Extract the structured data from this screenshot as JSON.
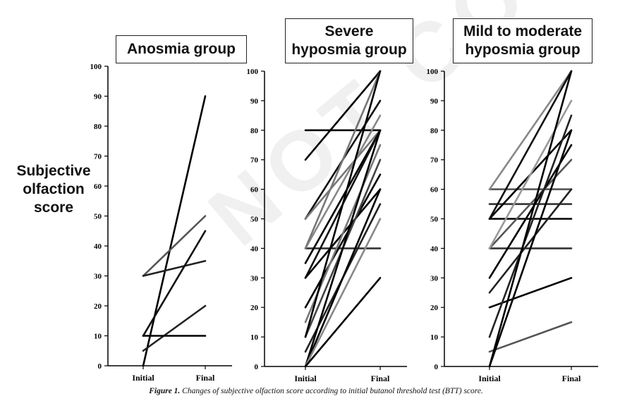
{
  "y_axis_title": [
    "Subjective",
    "olfaction",
    "score"
  ],
  "caption": {
    "label": "Figure 1.",
    "text": "Changes of subjective olfaction score according to initial butanol threshold test (BTT) score."
  },
  "watermark": "NOT COPY",
  "chart_data": [
    {
      "type": "line",
      "title": [
        "Anosmia group"
      ],
      "categories": [
        "Initial",
        "Final"
      ],
      "ylim": [
        0,
        100
      ],
      "yticks": [
        0,
        10,
        20,
        30,
        40,
        50,
        60,
        70,
        80,
        90,
        100
      ],
      "series": [
        {
          "values": [
            0,
            90
          ],
          "color": "#000000"
        },
        {
          "values": [
            30,
            50
          ],
          "color": "#555555"
        },
        {
          "values": [
            30,
            35
          ],
          "color": "#222222"
        },
        {
          "values": [
            10,
            45
          ],
          "color": "#111111"
        },
        {
          "values": [
            5,
            20
          ],
          "color": "#222222"
        },
        {
          "values": [
            10,
            10
          ],
          "color": "#000000"
        }
      ]
    },
    {
      "type": "line",
      "title": [
        "Severe",
        "hyposmia group"
      ],
      "categories": [
        "Initial",
        "Final"
      ],
      "ylim": [
        0,
        100
      ],
      "yticks": [
        0,
        10,
        20,
        30,
        40,
        50,
        60,
        70,
        80,
        90,
        100
      ],
      "series": [
        {
          "values": [
            80,
            80
          ],
          "color": "#000000"
        },
        {
          "values": [
            70,
            100
          ],
          "color": "#000000"
        },
        {
          "values": [
            50,
            90
          ],
          "color": "#111111"
        },
        {
          "values": [
            50,
            80
          ],
          "color": "#777777"
        },
        {
          "values": [
            40,
            40
          ],
          "color": "#333333"
        },
        {
          "values": [
            40,
            85
          ],
          "color": "#888888"
        },
        {
          "values": [
            40,
            100
          ],
          "color": "#777777"
        },
        {
          "values": [
            35,
            80
          ],
          "color": "#000000"
        },
        {
          "values": [
            30,
            80
          ],
          "color": "#111111"
        },
        {
          "values": [
            30,
            60
          ],
          "color": "#000000"
        },
        {
          "values": [
            20,
            65
          ],
          "color": "#000000"
        },
        {
          "values": [
            15,
            75
          ],
          "color": "#777777"
        },
        {
          "values": [
            10,
            70
          ],
          "color": "#444444"
        },
        {
          "values": [
            10,
            100
          ],
          "color": "#000000"
        },
        {
          "values": [
            5,
            55
          ],
          "color": "#222222"
        },
        {
          "values": [
            0,
            80
          ],
          "color": "#000000"
        },
        {
          "values": [
            0,
            60
          ],
          "color": "#000000"
        },
        {
          "values": [
            0,
            50
          ],
          "color": "#888888"
        },
        {
          "values": [
            0,
            30
          ],
          "color": "#000000"
        }
      ]
    },
    {
      "type": "line",
      "title": [
        "Mild to moderate",
        "hyposmia group"
      ],
      "categories": [
        "Initial",
        "Final"
      ],
      "ylim": [
        0,
        100
      ],
      "yticks": [
        0,
        10,
        20,
        30,
        40,
        50,
        60,
        70,
        80,
        90,
        100
      ],
      "series": [
        {
          "values": [
            60,
            60
          ],
          "color": "#555555"
        },
        {
          "values": [
            60,
            100
          ],
          "color": "#888888"
        },
        {
          "values": [
            55,
            55
          ],
          "color": "#333333"
        },
        {
          "values": [
            50,
            50
          ],
          "color": "#000000"
        },
        {
          "values": [
            50,
            80
          ],
          "color": "#000000"
        },
        {
          "values": [
            50,
            100
          ],
          "color": "#111111"
        },
        {
          "values": [
            40,
            40
          ],
          "color": "#333333"
        },
        {
          "values": [
            40,
            70
          ],
          "color": "#555555"
        },
        {
          "values": [
            40,
            90
          ],
          "color": "#999999"
        },
        {
          "values": [
            30,
            75
          ],
          "color": "#000000"
        },
        {
          "values": [
            25,
            60
          ],
          "color": "#222222"
        },
        {
          "values": [
            20,
            30
          ],
          "color": "#000000"
        },
        {
          "values": [
            10,
            85
          ],
          "color": "#222222"
        },
        {
          "values": [
            5,
            15
          ],
          "color": "#555555"
        },
        {
          "values": [
            0,
            80
          ],
          "color": "#000000"
        },
        {
          "values": [
            0,
            100
          ],
          "color": "#000000"
        }
      ]
    }
  ]
}
